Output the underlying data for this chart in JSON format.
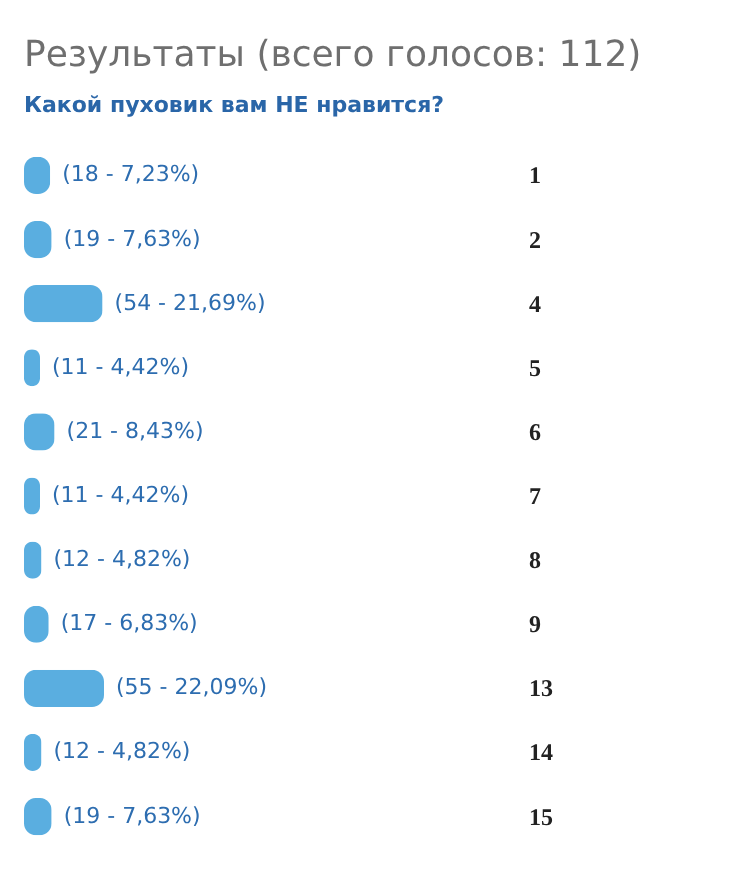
{
  "chart_data": {
    "type": "bar",
    "orientation": "horizontal",
    "title": "Результаты (всего голосов: 112)",
    "subtitle": "Какой пуховик вам НЕ нравится?",
    "categories": [
      "1",
      "2",
      "4",
      "5",
      "6",
      "7",
      "8",
      "9",
      "13",
      "14",
      "15"
    ],
    "values": [
      18,
      19,
      54,
      11,
      21,
      11,
      12,
      17,
      55,
      12,
      19
    ],
    "value_labels": [
      "(18 - 7,23%)",
      "(19 - 7,63%)",
      "(54 - 21,69%)",
      "(11 - 4,42%)",
      "(21 - 8,43%)",
      "(11 - 4,42%)",
      "(12 - 4,82%)",
      "(17 - 6,83%)",
      "(55 - 22,09%)",
      "(12 - 4,82%)",
      "(19 - 7,63%)"
    ],
    "color": "#5aaee0",
    "tick_labels": "y"
  }
}
